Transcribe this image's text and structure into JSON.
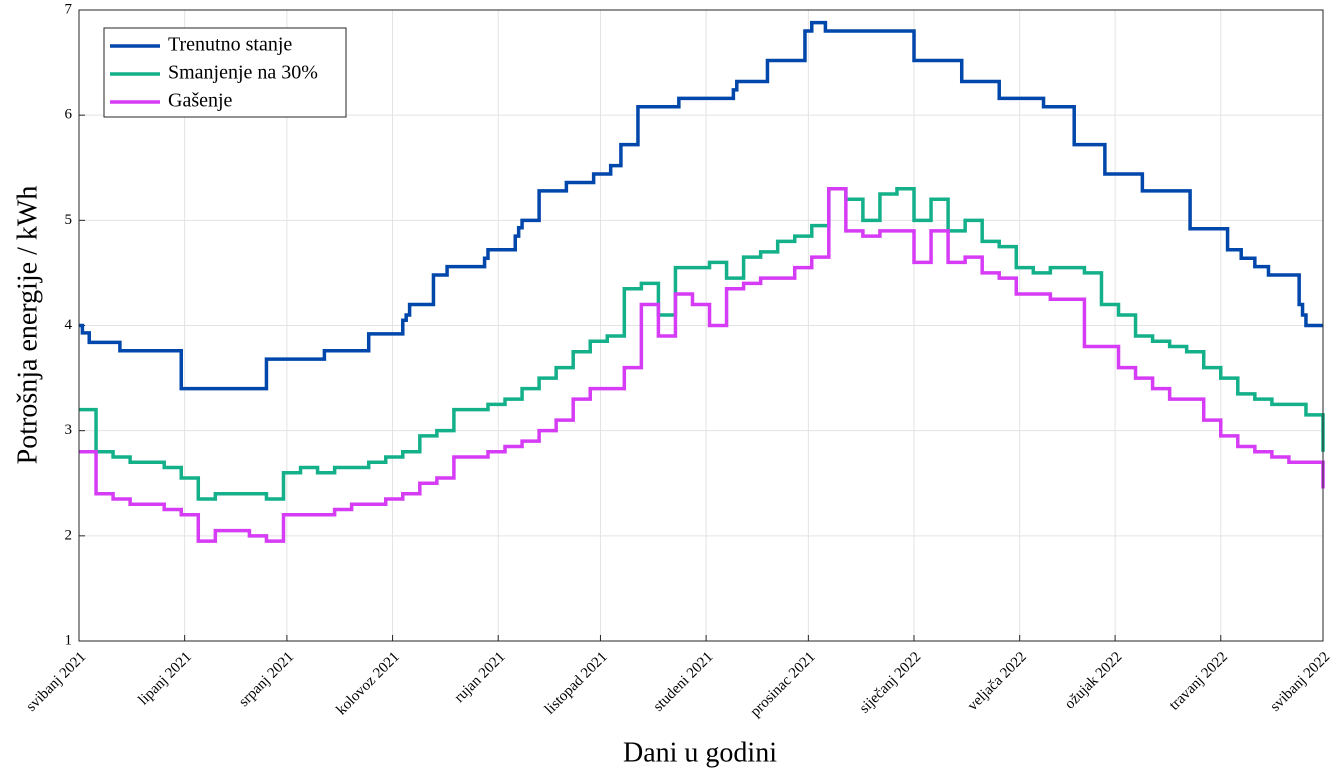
{
  "chart_data": {
    "type": "line",
    "step": "post",
    "xlabel": "Dani u godini",
    "ylabel": "Potrošnja energije / kWh",
    "xlim": [
      0,
      365
    ],
    "xticks": [
      {
        "value": 0,
        "label": "svibanj 2021"
      },
      {
        "value": 31,
        "label": "lipanj 2021"
      },
      {
        "value": 61,
        "label": "srpanj 2021"
      },
      {
        "value": 92,
        "label": "kolovoz 2021"
      },
      {
        "value": 123,
        "label": "rujan 2021"
      },
      {
        "value": 153,
        "label": "listopad 2021"
      },
      {
        "value": 184,
        "label": "studeni 2021"
      },
      {
        "value": 214,
        "label": "prosinac 2021"
      },
      {
        "value": 245,
        "label": "siječanj 2022"
      },
      {
        "value": 276,
        "label": "veljača 2022"
      },
      {
        "value": 304,
        "label": "ožujak 2022"
      },
      {
        "value": 335,
        "label": "travanj 2022"
      },
      {
        "value": 365,
        "label": "svibanj 2022"
      }
    ],
    "ylim": [
      1,
      7
    ],
    "yticks": [
      1,
      2,
      3,
      4,
      5,
      6,
      7
    ],
    "grid": true,
    "legend": "northwest",
    "series": [
      {
        "name": "Trenutno stanje",
        "color": "#0047ab",
        "x": [
          0,
          1,
          3,
          12,
          30,
          55,
          72,
          85,
          95,
          96,
          97,
          104,
          108,
          119,
          120,
          128,
          129,
          130,
          135,
          143,
          151,
          156,
          159,
          164,
          176,
          192,
          193,
          202,
          213,
          215,
          219,
          245,
          259,
          270,
          283,
          292,
          301,
          312,
          326,
          337,
          341,
          345,
          349,
          358,
          359,
          360,
          365
        ],
        "values": [
          4.0,
          3.93,
          3.84,
          3.76,
          3.4,
          3.68,
          3.76,
          3.92,
          4.05,
          4.1,
          4.2,
          4.48,
          4.56,
          4.64,
          4.72,
          4.85,
          4.93,
          5.0,
          5.28,
          5.36,
          5.44,
          5.52,
          5.72,
          6.08,
          6.16,
          6.24,
          6.32,
          6.52,
          6.8,
          6.88,
          6.8,
          6.52,
          6.32,
          6.16,
          6.08,
          5.72,
          5.44,
          5.28,
          4.92,
          4.72,
          4.64,
          4.56,
          4.48,
          4.2,
          4.1,
          4.0,
          4.0
        ]
      },
      {
        "name": "Smanjenje na 30%",
        "color": "#14b08a",
        "x": [
          0,
          5,
          10,
          15,
          20,
          25,
          30,
          35,
          40,
          45,
          50,
          55,
          60,
          65,
          70,
          75,
          80,
          85,
          90,
          95,
          100,
          105,
          110,
          115,
          120,
          125,
          130,
          135,
          140,
          145,
          150,
          155,
          160,
          165,
          170,
          175,
          180,
          185,
          190,
          195,
          200,
          205,
          210,
          215,
          220,
          225,
          230,
          235,
          240,
          245,
          250,
          255,
          260,
          265,
          270,
          275,
          280,
          285,
          290,
          295,
          300,
          305,
          310,
          315,
          320,
          325,
          330,
          335,
          340,
          345,
          350,
          355,
          360,
          365
        ],
        "values": [
          3.2,
          2.8,
          2.75,
          2.7,
          2.7,
          2.65,
          2.55,
          2.35,
          2.4,
          2.4,
          2.4,
          2.35,
          2.6,
          2.65,
          2.6,
          2.65,
          2.65,
          2.7,
          2.75,
          2.8,
          2.95,
          3.0,
          3.2,
          3.2,
          3.25,
          3.3,
          3.4,
          3.5,
          3.6,
          3.75,
          3.85,
          3.9,
          4.35,
          4.4,
          4.1,
          4.55,
          4.55,
          4.6,
          4.45,
          4.65,
          4.7,
          4.8,
          4.85,
          4.95,
          5.3,
          5.2,
          5.0,
          5.25,
          5.3,
          5.0,
          5.2,
          4.9,
          5.0,
          4.8,
          4.75,
          4.55,
          4.5,
          4.55,
          4.55,
          4.5,
          4.2,
          4.1,
          3.9,
          3.85,
          3.8,
          3.75,
          3.6,
          3.5,
          3.35,
          3.3,
          3.25,
          3.25,
          3.15,
          2.8
        ]
      },
      {
        "name": "Gašenje",
        "color": "#d63cf5",
        "x": [
          0,
          5,
          10,
          15,
          20,
          25,
          30,
          35,
          40,
          45,
          50,
          55,
          60,
          65,
          70,
          75,
          80,
          85,
          90,
          95,
          100,
          105,
          110,
          115,
          120,
          125,
          130,
          135,
          140,
          145,
          150,
          155,
          160,
          165,
          170,
          175,
          180,
          185,
          190,
          195,
          200,
          205,
          210,
          215,
          220,
          225,
          230,
          235,
          240,
          245,
          250,
          255,
          260,
          265,
          270,
          275,
          280,
          285,
          290,
          295,
          300,
          305,
          310,
          315,
          320,
          325,
          330,
          335,
          340,
          345,
          350,
          355,
          360,
          365
        ],
        "values": [
          2.8,
          2.4,
          2.35,
          2.3,
          2.3,
          2.25,
          2.2,
          1.95,
          2.05,
          2.05,
          2.0,
          1.95,
          2.2,
          2.2,
          2.2,
          2.25,
          2.3,
          2.3,
          2.35,
          2.4,
          2.5,
          2.55,
          2.75,
          2.75,
          2.8,
          2.85,
          2.9,
          3.0,
          3.1,
          3.3,
          3.4,
          3.4,
          3.6,
          4.2,
          3.9,
          4.3,
          4.2,
          4.0,
          4.35,
          4.4,
          4.45,
          4.45,
          4.55,
          4.65,
          5.3,
          4.9,
          4.85,
          4.9,
          4.9,
          4.6,
          4.9,
          4.6,
          4.65,
          4.5,
          4.45,
          4.3,
          4.3,
          4.25,
          4.25,
          3.8,
          3.8,
          3.6,
          3.5,
          3.4,
          3.3,
          3.3,
          3.1,
          2.95,
          2.85,
          2.8,
          2.75,
          2.7,
          2.7,
          2.45
        ]
      }
    ]
  }
}
